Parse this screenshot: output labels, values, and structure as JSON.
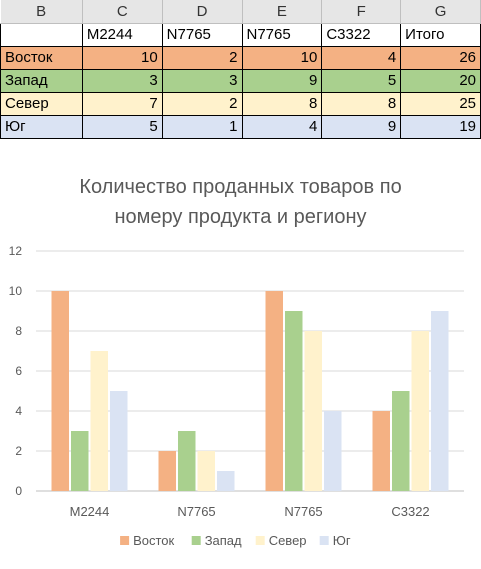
{
  "sheet": {
    "column_headers": [
      "B",
      "C",
      "D",
      "E",
      "F",
      "G"
    ],
    "header_row": [
      "",
      "M2244",
      "N7765",
      "N7765",
      "C3322",
      "Итого"
    ],
    "rows": [
      {
        "label": "Восток",
        "values": [
          "10",
          "2",
          "10",
          "4",
          "26"
        ],
        "color": "#f4b183"
      },
      {
        "label": "Запад",
        "values": [
          "3",
          "3",
          "9",
          "5",
          "20"
        ],
        "color": "#a9d08e"
      },
      {
        "label": "Север",
        "values": [
          "7",
          "2",
          "8",
          "8",
          "25"
        ],
        "color": "#fff2cc"
      },
      {
        "label": "Юг",
        "values": [
          "5",
          "1",
          "4",
          "9",
          "19"
        ],
        "color": "#dae3f3"
      }
    ]
  },
  "chart_data": {
    "type": "bar",
    "title": "Количество проданных товаров по номеру продукта и региону",
    "title_lines": [
      "Количество проданных товаров по",
      "номеру продукта и региону"
    ],
    "categories": [
      "M2244",
      "N7765",
      "N7765",
      "C3322"
    ],
    "series": [
      {
        "name": "Восток",
        "values": [
          10,
          2,
          10,
          4
        ],
        "color": "#f4b183"
      },
      {
        "name": "Запад",
        "values": [
          3,
          3,
          9,
          5
        ],
        "color": "#a9d08e"
      },
      {
        "name": "Север",
        "values": [
          7,
          2,
          8,
          8
        ],
        "color": "#fff2cc"
      },
      {
        "name": "Юг",
        "values": [
          5,
          1,
          4,
          9
        ],
        "color": "#dae3f3"
      }
    ],
    "ylim": [
      0,
      12
    ],
    "yticks": [
      "0",
      "2",
      "4",
      "6",
      "8",
      "10",
      "12"
    ],
    "grid": true,
    "legend": "bottom"
  }
}
